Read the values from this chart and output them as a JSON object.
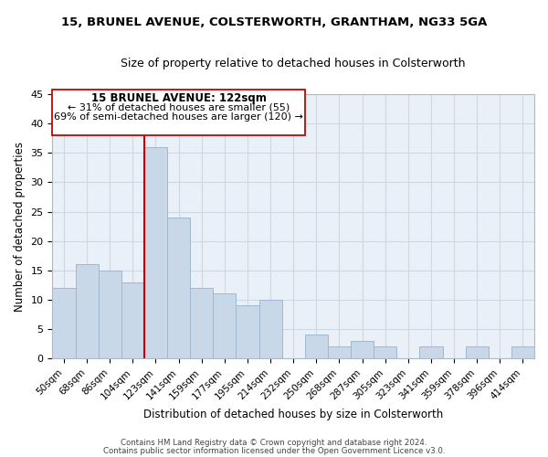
{
  "title": "15, BRUNEL AVENUE, COLSTERWORTH, GRANTHAM, NG33 5GA",
  "subtitle": "Size of property relative to detached houses in Colsterworth",
  "xlabel": "Distribution of detached houses by size in Colsterworth",
  "ylabel": "Number of detached properties",
  "bar_labels": [
    "50sqm",
    "68sqm",
    "86sqm",
    "104sqm",
    "123sqm",
    "141sqm",
    "159sqm",
    "177sqm",
    "195sqm",
    "214sqm",
    "232sqm",
    "250sqm",
    "268sqm",
    "287sqm",
    "305sqm",
    "323sqm",
    "341sqm",
    "359sqm",
    "378sqm",
    "396sqm",
    "414sqm"
  ],
  "bar_values": [
    12,
    16,
    15,
    13,
    36,
    24,
    12,
    11,
    9,
    10,
    0,
    4,
    2,
    3,
    2,
    0,
    2,
    0,
    2,
    0,
    2
  ],
  "bar_color": "#c8d8e8",
  "bar_edge_color": "#a0b8d0",
  "vline_color": "#cc0000",
  "ylim": [
    0,
    45
  ],
  "yticks": [
    0,
    5,
    10,
    15,
    20,
    25,
    30,
    35,
    40,
    45
  ],
  "annotation_title": "15 BRUNEL AVENUE: 122sqm",
  "annotation_line1": "← 31% of detached houses are smaller (55)",
  "annotation_line2": "69% of semi-detached houses are larger (120) →",
  "footer_line1": "Contains HM Land Registry data © Crown copyright and database right 2024.",
  "footer_line2": "Contains public sector information licensed under the Open Government Licence v3.0.",
  "background_color": "#ffffff",
  "grid_color": "#ccd8e4"
}
